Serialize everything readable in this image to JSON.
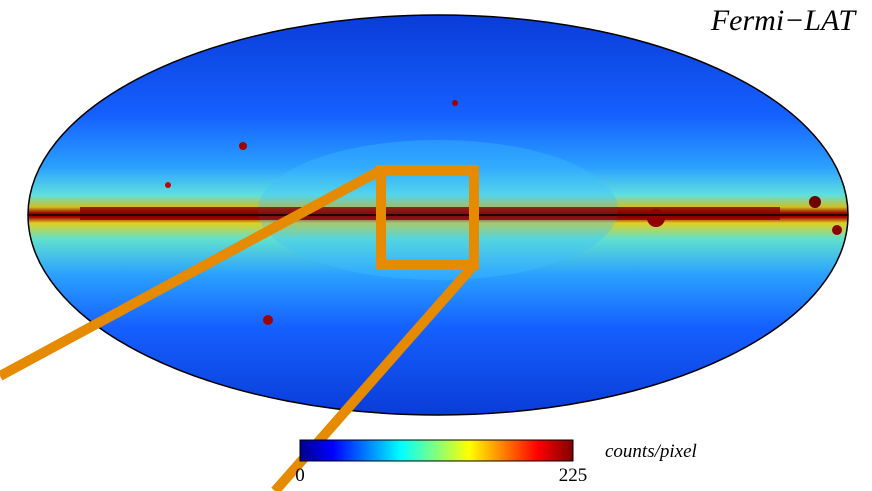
{
  "title": "Fermi−LAT",
  "colorbar": {
    "label": "counts/pixel",
    "min": 0,
    "max": 225
  }
}
